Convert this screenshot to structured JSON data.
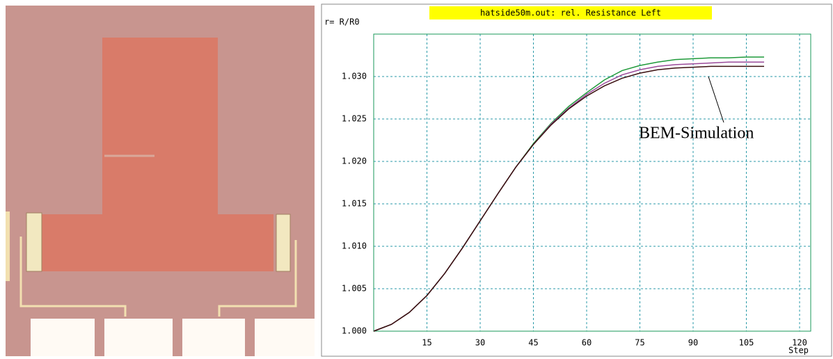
{
  "chart_data": {
    "type": "line",
    "title": "hatside50m.out: rel. Resistance Left",
    "y_label": "r= R/R0",
    "x_label": "Step",
    "annotation": "BEM-Simulation",
    "x": [
      0,
      5,
      10,
      15,
      20,
      25,
      30,
      35,
      40,
      45,
      50,
      55,
      60,
      65,
      70,
      75,
      80,
      85,
      90,
      95,
      100,
      105,
      110
    ],
    "series": [
      {
        "color": "#1f9a3a",
        "values": [
          1.0,
          1.0008,
          1.0022,
          1.0042,
          1.0068,
          1.0098,
          1.013,
          1.0162,
          1.0193,
          1.0221,
          1.0245,
          1.0265,
          1.0281,
          1.0296,
          1.0307,
          1.0313,
          1.0317,
          1.032,
          1.0321,
          1.0322,
          1.0322,
          1.0323,
          1.0323
        ]
      },
      {
        "color": "#9a4a9a",
        "values": [
          1.0,
          1.0008,
          1.0022,
          1.0042,
          1.0068,
          1.0098,
          1.013,
          1.0162,
          1.0193,
          1.022,
          1.0244,
          1.0263,
          1.0279,
          1.0292,
          1.0302,
          1.0308,
          1.0312,
          1.0314,
          1.0315,
          1.0316,
          1.0317,
          1.0317,
          1.0317
        ]
      },
      {
        "color": "#3a0f0f",
        "values": [
          1.0,
          1.0008,
          1.0022,
          1.0042,
          1.0068,
          1.0098,
          1.013,
          1.0162,
          1.0193,
          1.022,
          1.0243,
          1.0262,
          1.0277,
          1.0289,
          1.0298,
          1.0304,
          1.0308,
          1.031,
          1.0311,
          1.0312,
          1.0312,
          1.0312,
          1.0312
        ]
      }
    ],
    "xlim": [
      0,
      120
    ],
    "xticks": [
      15,
      30,
      45,
      60,
      75,
      90,
      105,
      120
    ],
    "ylim": [
      1.0,
      1.035
    ],
    "yticks": [
      {
        "value": 1.0,
        "label": "1.000"
      },
      {
        "value": 1.005,
        "label": "1.005"
      },
      {
        "value": 1.01,
        "label": "1.010"
      },
      {
        "value": 1.015,
        "label": "1.015"
      },
      {
        "value": 1.02,
        "label": "1.020"
      },
      {
        "value": 1.025,
        "label": "1.025"
      },
      {
        "value": 1.03,
        "label": "1.030"
      }
    ],
    "grid": true
  }
}
